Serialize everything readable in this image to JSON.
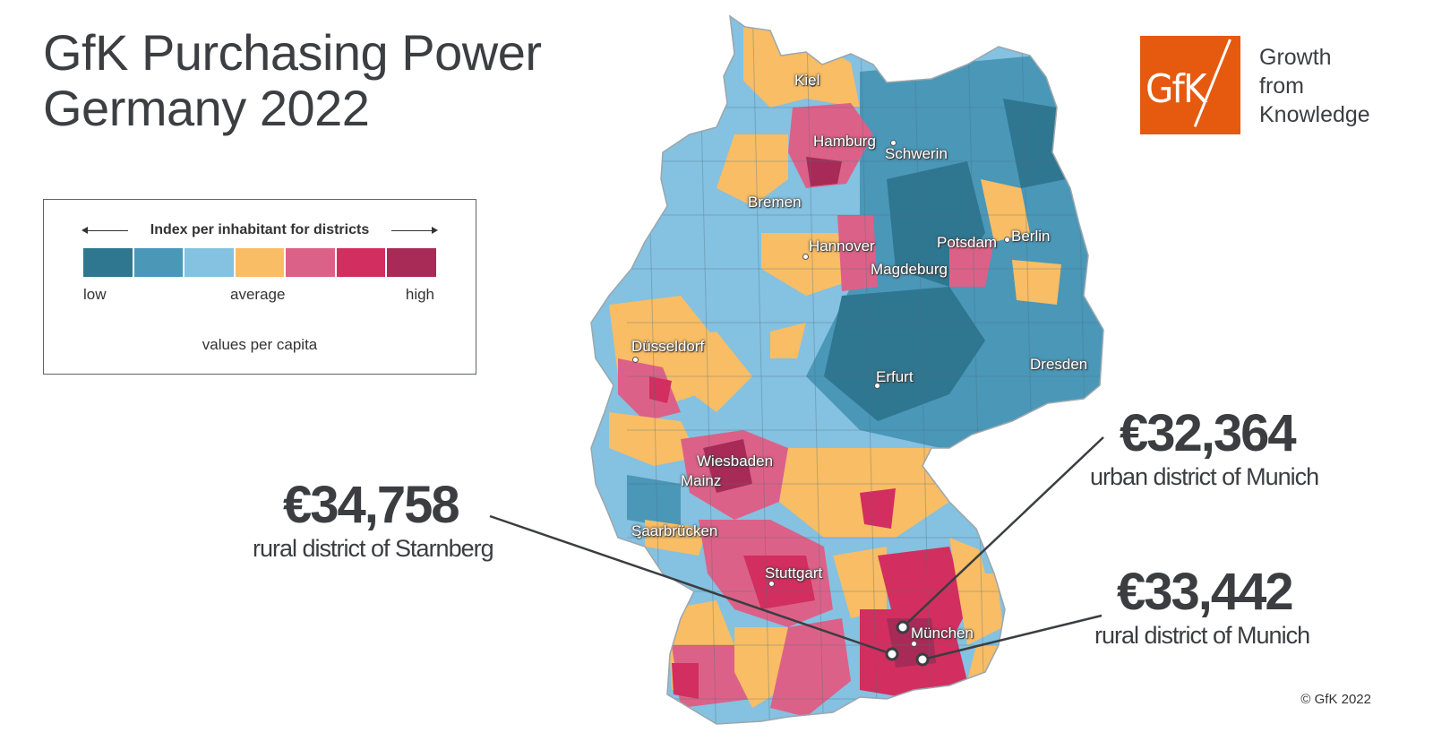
{
  "title": {
    "line1": "GfK Purchasing Power",
    "line2": "Germany 2022"
  },
  "legend": {
    "heading": "Index per inhabitant for districts",
    "low": "low",
    "average": "average",
    "high": "high",
    "note": "values per capita",
    "colors": [
      "#2f7691",
      "#4a97b8",
      "#85c1e0",
      "#f8bd65",
      "#dc6188",
      "#d22e5f",
      "#a82b57"
    ]
  },
  "logo": {
    "mark": "GfK",
    "tagline": [
      "Growth",
      "from",
      "Knowledge"
    ],
    "color": "#e55a0f"
  },
  "map": {
    "cities": [
      "Kiel",
      "Hamburg",
      "Schwerin",
      "Bremen",
      "Hannover",
      "Potsdam",
      "Berlin",
      "Magdeburg",
      "Düsseldorf",
      "Dresden",
      "Erfurt",
      "Wiesbaden",
      "Mainz",
      "Saarbrücken",
      "Stuttgart",
      "München"
    ]
  },
  "callouts": [
    {
      "value": "€32,364",
      "label": "urban district of Munich"
    },
    {
      "value": "€34,758",
      "label": "rural district of Starnberg"
    },
    {
      "value": "€33,442",
      "label": "rural district of Munich"
    }
  ],
  "copyright": "© GfK 2022"
}
